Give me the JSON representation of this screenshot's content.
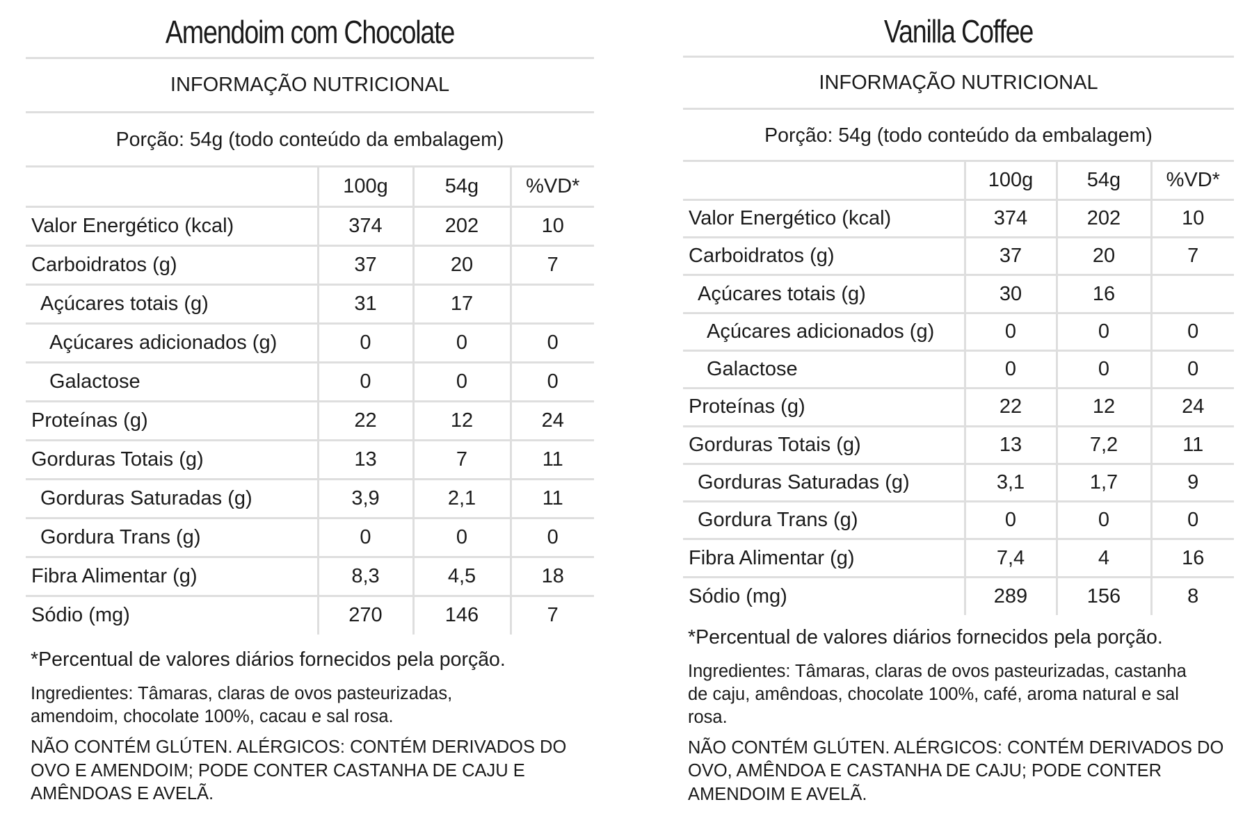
{
  "panels": [
    {
      "title": "Amendoim com Chocolate",
      "info_heading": "INFORMAÇÃO NUTRICIONAL",
      "portion": "Porção: 54g (todo conteúdo da embalagem)",
      "columns": [
        "100g",
        "54g",
        "%VD*"
      ],
      "rows": [
        {
          "label": "Valor Energético (kcal)",
          "v100": "374",
          "v54": "202",
          "vd": "10"
        },
        {
          "label": "Carboidratos (g)",
          "v100": "37",
          "v54": "20",
          "vd": "7"
        },
        {
          "label": "Açúcares totais (g)",
          "v100": "31",
          "v54": "17",
          "vd": ""
        },
        {
          "label": "Açúcares adicionados (g)",
          "v100": "0",
          "v54": "0",
          "vd": "0"
        },
        {
          "label": "Galactose",
          "v100": "0",
          "v54": "0",
          "vd": "0"
        },
        {
          "label": "Proteínas (g)",
          "v100": "22",
          "v54": "12",
          "vd": "24"
        },
        {
          "label": "Gorduras Totais (g)",
          "v100": "13",
          "v54": "7",
          "vd": "11"
        },
        {
          "label": "Gorduras Saturadas (g)",
          "v100": "3,9",
          "v54": "2,1",
          "vd": "11"
        },
        {
          "label": "Gordura Trans (g)",
          "v100": "0",
          "v54": "0",
          "vd": "0"
        },
        {
          "label": "Fibra Alimentar (g)",
          "v100": "8,3",
          "v54": "4,5",
          "vd": "18"
        },
        {
          "label": "Sódio (mg)",
          "v100": "270",
          "v54": "146",
          "vd": "7"
        }
      ],
      "footnote": "*Percentual de valores diários fornecidos pela porção.",
      "ingredients_line1": "Ingredientes: Tâmaras, claras de ovos pasteurizadas,",
      "ingredients_line2": "amendoim, chocolate 100%, cacau e sal rosa.",
      "allergens_line1": "NÃO CONTÉM GLÚTEN. ALÉRGICOS: CONTÉM DERIVADOS DO",
      "allergens_line2": "OVO E AMENDOIM; PODE CONTER CASTANHA DE CAJU E",
      "allergens_line3": "AMÊNDOAS E AVELÃ."
    },
    {
      "title": "Vanilla Coffee",
      "info_heading": "INFORMAÇÃO NUTRICIONAL",
      "portion": "Porção: 54g (todo conteúdo da embalagem)",
      "columns": [
        "100g",
        "54g",
        "%VD*"
      ],
      "rows": [
        {
          "label": "Valor Energético (kcal)",
          "v100": "374",
          "v54": "202",
          "vd": "10"
        },
        {
          "label": "Carboidratos (g)",
          "v100": "37",
          "v54": "20",
          "vd": "7"
        },
        {
          "label": "Açúcares totais (g)",
          "v100": "30",
          "v54": "16",
          "vd": ""
        },
        {
          "label": "Açúcares adicionados (g)",
          "v100": "0",
          "v54": "0",
          "vd": "0"
        },
        {
          "label": "Galactose",
          "v100": "0",
          "v54": "0",
          "vd": "0"
        },
        {
          "label": "Proteínas (g)",
          "v100": "22",
          "v54": "12",
          "vd": "24"
        },
        {
          "label": "Gorduras Totais (g)",
          "v100": "13",
          "v54": "7,2",
          "vd": "11"
        },
        {
          "label": "Gorduras Saturadas (g)",
          "v100": "3,1",
          "v54": "1,7",
          "vd": "9"
        },
        {
          "label": "Gordura Trans (g)",
          "v100": "0",
          "v54": "0",
          "vd": "0"
        },
        {
          "label": "Fibra Alimentar (g)",
          "v100": "7,4",
          "v54": "4",
          "vd": "16"
        },
        {
          "label": "Sódio (mg)",
          "v100": "289",
          "v54": "156",
          "vd": "8"
        }
      ],
      "footnote": "*Percentual de valores diários fornecidos pela porção.",
      "ingredients_line1": "Ingredientes: Tâmaras, claras de ovos pasteurizadas, castanha",
      "ingredients_line2": "de caju, amêndoas, chocolate 100%, café, aroma natural e sal",
      "ingredients_line3": "rosa.",
      "allergens_line1": "NÃO CONTÉM GLÚTEN. ALÉRGICOS: CONTÉM DERIVADOS DO",
      "allergens_line2": "OVO, AMÊNDOA E CASTANHA DE CAJU; PODE CONTER",
      "allergens_line3": "AMENDOIM E AVELÃ."
    }
  ]
}
